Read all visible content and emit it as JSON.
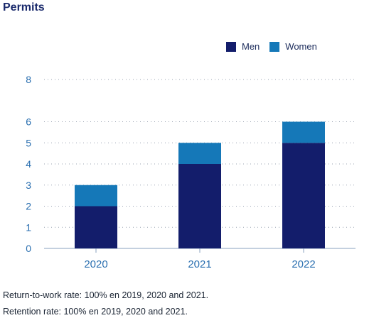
{
  "title": "Permits",
  "notes": [
    "Return-to-work rate: 100% en 2019, 2020 and 2021.",
    "Retention rate: 100% en 2019, 2020 and 2021."
  ],
  "colors": {
    "men": "#131d6b",
    "women": "#1578b8",
    "axis_text": "#2a6fb0",
    "grid": "#9aa3b2"
  },
  "chart_data": {
    "type": "bar",
    "stacked": true,
    "categories": [
      "2020",
      "2021",
      "2022"
    ],
    "series": [
      {
        "name": "Men",
        "values": [
          2,
          4,
          5
        ]
      },
      {
        "name": "Women",
        "values": [
          1,
          1,
          1
        ]
      }
    ],
    "ylim": [
      0,
      8
    ],
    "yticks": [
      0,
      1,
      2,
      3,
      4,
      5,
      6,
      8
    ],
    "grid": true,
    "legend_position": "top-right"
  }
}
